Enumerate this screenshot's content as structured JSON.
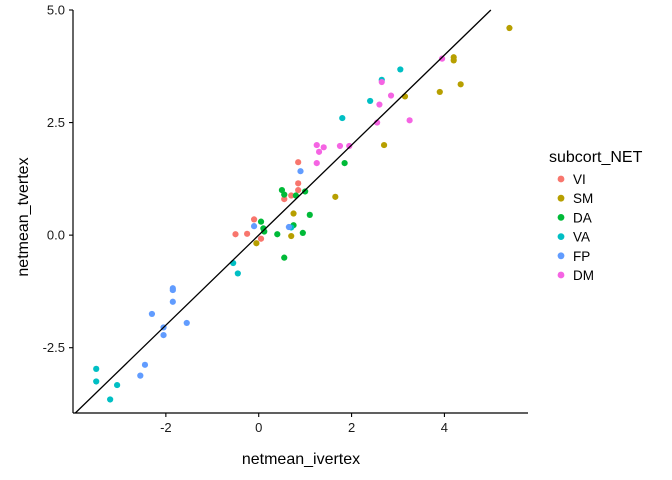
{
  "chart_data": {
    "type": "scatter",
    "xlabel": "netmean_ivertex",
    "ylabel": "netmean_tvertex",
    "xlim": [
      -4,
      5.8
    ],
    "ylim": [
      -3.95,
      5.0
    ],
    "x_ticks": [
      -2,
      0,
      2,
      4
    ],
    "x_tick_labels": [
      "-2",
      "0",
      "2",
      "4"
    ],
    "y_ticks": [
      -2.5,
      0.0,
      2.5,
      5.0
    ],
    "y_tick_labels": [
      "-2.5",
      "0.0",
      "2.5",
      "5.0"
    ],
    "grid": false,
    "legend_title": "subcort_NET",
    "legend_position": "right",
    "reference_line": {
      "kind": "identity",
      "slope": 1,
      "intercept": 0
    },
    "series": [
      {
        "name": "VI",
        "color": "#F8766D",
        "points": [
          [
            -0.5,
            0.02
          ],
          [
            -0.25,
            0.03
          ],
          [
            -0.1,
            0.35
          ],
          [
            0.05,
            -0.08
          ],
          [
            0.55,
            0.8
          ],
          [
            0.85,
            1.62
          ],
          [
            0.85,
            1.15
          ],
          [
            0.85,
            1.0
          ],
          [
            0.7,
            0.88
          ]
        ]
      },
      {
        "name": "SM",
        "color": "#B79F00",
        "points": [
          [
            5.4,
            4.6
          ],
          [
            4.2,
            3.95
          ],
          [
            4.2,
            3.88
          ],
          [
            4.35,
            3.35
          ],
          [
            3.9,
            3.18
          ],
          [
            3.15,
            3.08
          ],
          [
            2.7,
            2.0
          ],
          [
            1.65,
            0.85
          ],
          [
            0.75,
            0.48
          ],
          [
            0.7,
            -0.02
          ],
          [
            -0.05,
            -0.18
          ]
        ]
      },
      {
        "name": "DA",
        "color": "#00BA38",
        "points": [
          [
            0.5,
            1.0
          ],
          [
            0.55,
            0.9
          ],
          [
            0.8,
            0.88
          ],
          [
            1.0,
            0.97
          ],
          [
            1.1,
            0.45
          ],
          [
            0.05,
            0.3
          ],
          [
            0.1,
            0.15
          ],
          [
            0.12,
            0.08
          ],
          [
            0.4,
            0.02
          ],
          [
            0.75,
            0.22
          ],
          [
            0.95,
            0.05
          ],
          [
            0.55,
            -0.5
          ],
          [
            1.85,
            1.6
          ]
        ]
      },
      {
        "name": "VA",
        "color": "#00BFC4",
        "points": [
          [
            -3.5,
            -2.97
          ],
          [
            -3.5,
            -3.25
          ],
          [
            -3.2,
            -3.65
          ],
          [
            -3.05,
            -3.33
          ],
          [
            -0.55,
            -0.62
          ],
          [
            -0.45,
            -0.85
          ],
          [
            0.7,
            0.17
          ],
          [
            1.8,
            2.6
          ],
          [
            2.4,
            2.98
          ],
          [
            2.65,
            3.45
          ],
          [
            3.05,
            3.68
          ]
        ]
      },
      {
        "name": "FP",
        "color": "#619CFF",
        "points": [
          [
            -2.55,
            -3.12
          ],
          [
            -2.45,
            -2.88
          ],
          [
            -2.05,
            -2.22
          ],
          [
            -2.05,
            -2.05
          ],
          [
            -1.85,
            -1.22
          ],
          [
            -1.85,
            -1.18
          ],
          [
            -1.85,
            -1.48
          ],
          [
            -1.55,
            -1.95
          ],
          [
            -2.3,
            -1.75
          ],
          [
            -0.1,
            0.2
          ],
          [
            0.65,
            0.18
          ],
          [
            0.9,
            1.42
          ]
        ]
      },
      {
        "name": "DM",
        "color": "#F564E3",
        "points": [
          [
            3.95,
            3.92
          ],
          [
            2.65,
            3.4
          ],
          [
            2.85,
            3.1
          ],
          [
            2.6,
            2.9
          ],
          [
            3.25,
            2.55
          ],
          [
            2.55,
            2.5
          ],
          [
            1.25,
            2.0
          ],
          [
            1.4,
            1.95
          ],
          [
            1.75,
            1.98
          ],
          [
            1.95,
            1.98
          ],
          [
            1.3,
            1.85
          ],
          [
            1.25,
            1.6
          ]
        ]
      }
    ]
  }
}
